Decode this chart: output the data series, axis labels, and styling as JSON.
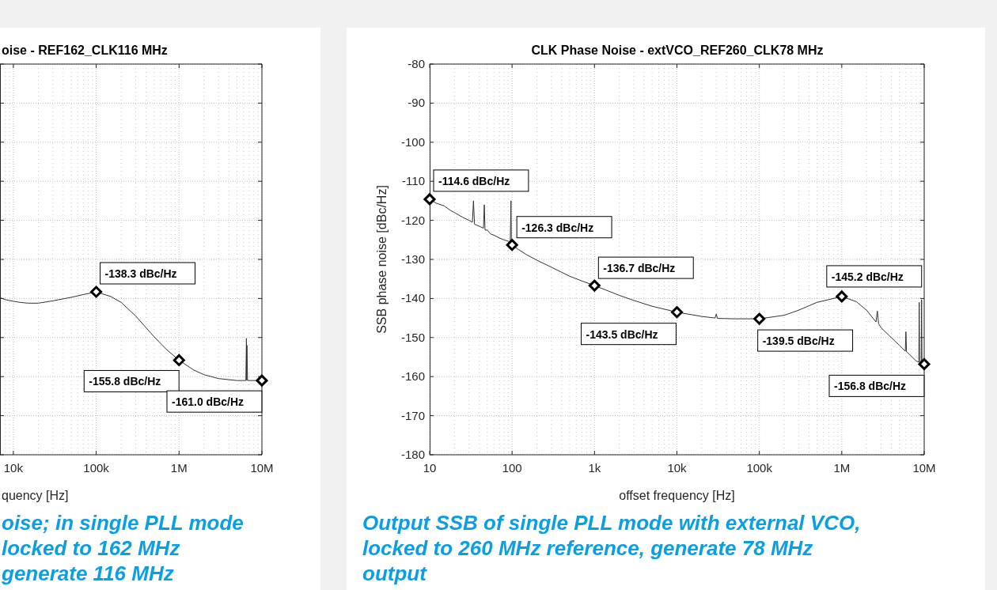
{
  "chart_data": [
    {
      "type": "line",
      "title": "oise - REF162_CLK116 MHz",
      "xlabel": "quency [Hz]",
      "log": "x",
      "grid": true,
      "tick_labels": "x",
      "xlim": [
        6900,
        10000000
      ],
      "ylim": [
        -180,
        -80
      ],
      "xticks": [
        {
          "value": 10000,
          "label": "10k"
        },
        {
          "value": 100000,
          "label": "100k"
        },
        {
          "value": 1000000,
          "label": "1M"
        },
        {
          "value": 10000000,
          "label": "10M"
        }
      ],
      "yticks": [
        -180,
        -170,
        -160,
        -150,
        -140,
        -130,
        -120,
        -110,
        -100,
        -90,
        -80
      ],
      "series": [
        {
          "color": "#333333",
          "x": [
            6900,
            8000,
            10000,
            12000,
            15000,
            20000,
            30000,
            50000,
            70000,
            100000,
            150000,
            200000,
            300000,
            500000,
            700000,
            1000000,
            1500000,
            2000000,
            3000000,
            5000000,
            6400000,
            6500000,
            6550000,
            6600000,
            6700000,
            8000000,
            10000000
          ],
          "values": [
            -139.8,
            -140.3,
            -140.7,
            -141,
            -141.2,
            -141.2,
            -140.6,
            -139.7,
            -139,
            -138.3,
            -139.5,
            -141,
            -144.5,
            -149.8,
            -153,
            -155.8,
            -158.3,
            -159.5,
            -160.5,
            -161,
            -161,
            -150.2,
            -160.9,
            -152,
            -161,
            -161,
            -161.0
          ]
        }
      ],
      "annotations": [
        {
          "text": "-138.3 dBc/Hz",
          "x": 100000,
          "y": -138.3
        },
        {
          "text": "-155.8 dBc/Hz",
          "x": 1000000,
          "y": -155.8
        },
        {
          "text": "-161.0 dBc/Hz",
          "x": 10000000,
          "y": -161.0
        },
        "oise; in single PLL mode\nlocked to 162 MHz\ngenerate 116 MHz"
      ]
    },
    {
      "type": "line",
      "title": "CLK Phase Noise - extVCO_REF260_CLK78 MHz",
      "xlabel": "offset frequency [Hz]",
      "ylabel": "SSB phase noise [dBc/Hz]",
      "log": "x",
      "grid": true,
      "xlim": [
        10,
        10000000
      ],
      "ylim": [
        -180,
        -80
      ],
      "xticks": [
        10,
        100,
        {
          "value": 1000,
          "label": "1k"
        },
        {
          "value": 10000,
          "label": "10k"
        },
        {
          "value": 100000,
          "label": "100k"
        },
        {
          "value": 1000000,
          "label": "1M"
        },
        {
          "value": 10000000,
          "label": "10M"
        }
      ],
      "yticks": [
        -180,
        -170,
        -160,
        -150,
        -140,
        -130,
        -120,
        -110,
        -100,
        -90,
        -80
      ],
      "series": [
        {
          "color": "#333333",
          "x": [
            10,
            12,
            15,
            18,
            20,
            25,
            30,
            33,
            34,
            35,
            40,
            45,
            46,
            47,
            50,
            55,
            60,
            70,
            80,
            95,
            97,
            98,
            100,
            120,
            150,
            200,
            300,
            500,
            700,
            1000,
            2000,
            3000,
            5000,
            10000,
            20000,
            29000,
            30000,
            31000,
            50000,
            100000,
            200000,
            300000,
            500000,
            1000000,
            1500000,
            2000000,
            2600000,
            2700000,
            2800000,
            3000000,
            5000000,
            5900000,
            6000000,
            6100000,
            7000000,
            8000000,
            8600000,
            8700000,
            8800000,
            9200000,
            9300000,
            9400000,
            10000000
          ],
          "values": [
            -114.6,
            -115.6,
            -116.3,
            -117.5,
            -118,
            -119.2,
            -120,
            -120.5,
            -115,
            -121,
            -121.5,
            -122,
            -116,
            -122.5,
            -122.5,
            -123.5,
            -123.8,
            -124.5,
            -125,
            -125.5,
            -115,
            -125.8,
            -126.3,
            -127.5,
            -128.8,
            -130.2,
            -132,
            -134.3,
            -135.5,
            -136.7,
            -139.2,
            -140.5,
            -142,
            -143.5,
            -144.6,
            -145,
            -144,
            -145.1,
            -145.2,
            -145.2,
            -144.3,
            -143,
            -141,
            -139.5,
            -140.8,
            -143,
            -146,
            -143.2,
            -146.5,
            -147.5,
            -152,
            -153.5,
            -148.5,
            -153.6,
            -154.8,
            -156,
            -156.3,
            -141,
            -156.4,
            -156.5,
            -140.3,
            -156.6,
            -156.8
          ]
        }
      ],
      "annotations": [
        {
          "text": "-114.6 dBc/Hz",
          "x": 10,
          "y": -114.6
        },
        {
          "text": "-126.3 dBc/Hz",
          "x": 100,
          "y": -126.3
        },
        {
          "text": "-136.7 dBc/Hz",
          "x": 1000,
          "y": -136.7
        },
        {
          "text": "-143.5 dBc/Hz",
          "x": 10000,
          "y": -143.5
        },
        {
          "text": "-139.5 dBc/Hz",
          "x": 100000,
          "y": -145.2
        },
        {
          "text": "-145.2 dBc/Hz",
          "x": 1000000,
          "y": -139.5
        },
        {
          "text": "-156.8 dBc/Hz",
          "x": 10000000,
          "y": -156.8
        },
        "Output SSB of single PLL mode with external VCO,\nlocked to 260 MHz reference, generate 78 MHz\noutput"
      ]
    }
  ]
}
